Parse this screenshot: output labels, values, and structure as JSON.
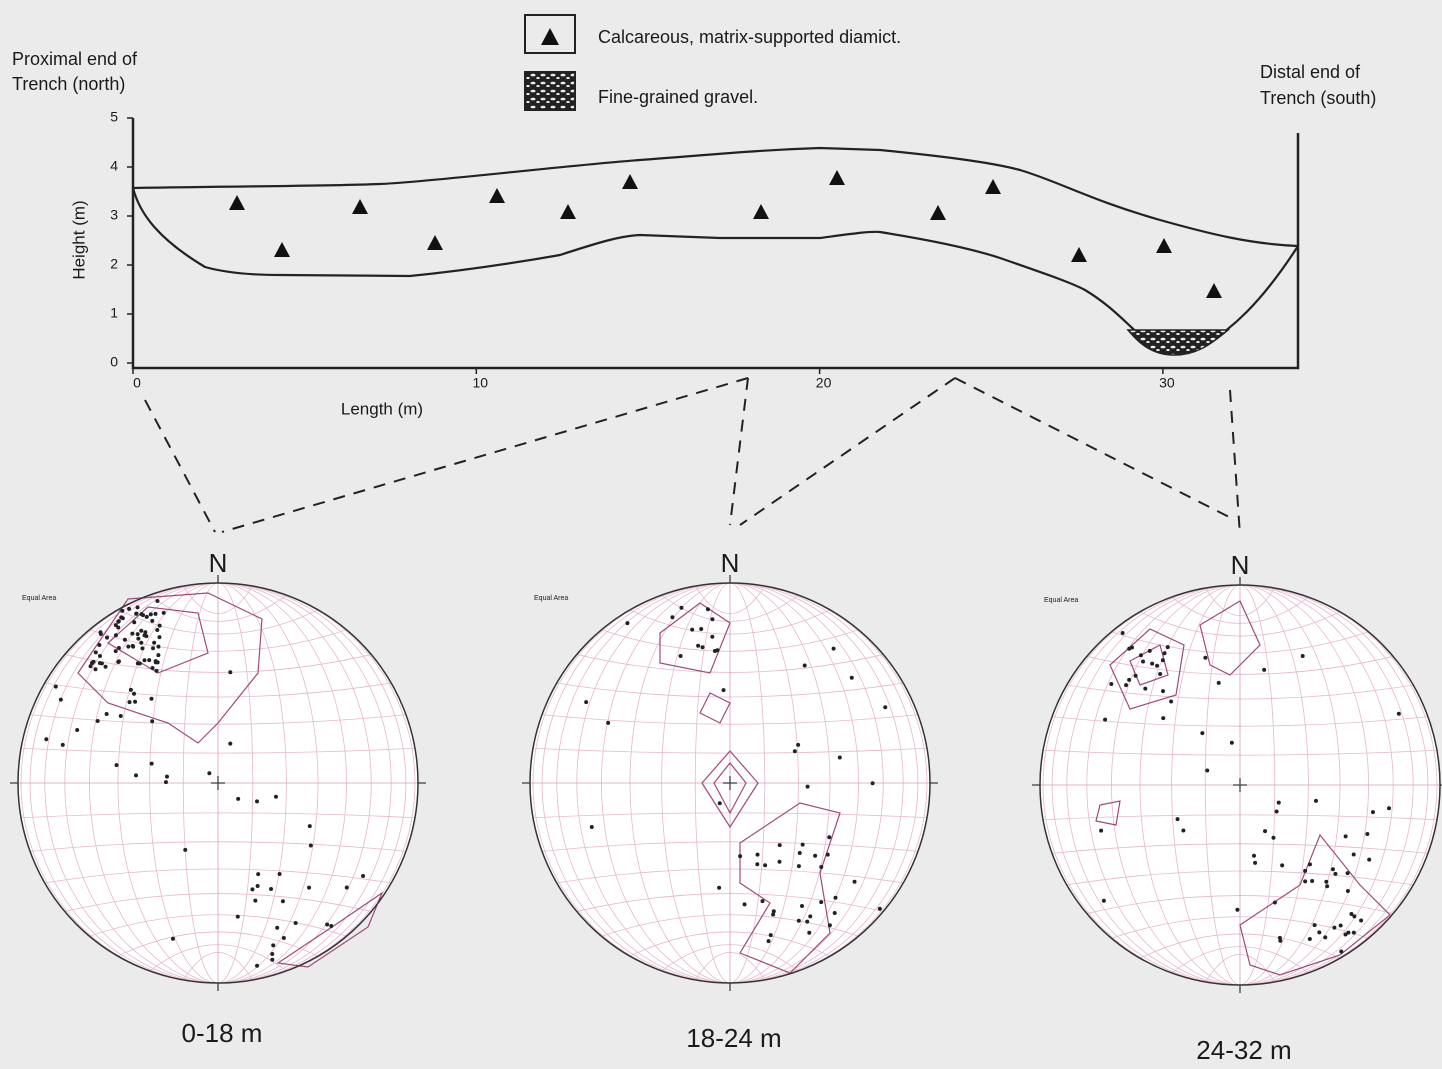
{
  "legend": [
    {
      "label": "Calcareous, matrix-supported diamict."
    },
    {
      "label": "Fine-grained gravel."
    }
  ],
  "section": {
    "left_label": [
      "Proximal end of",
      "Trench (north)"
    ],
    "right_label": [
      "Distal end of",
      "Trench (south)"
    ],
    "y_axis": {
      "title": "Height (m)",
      "ticks": [
        0,
        1,
        2,
        3,
        4,
        5
      ]
    },
    "x_axis": {
      "title": "Length (m)",
      "ticks": [
        0,
        10,
        20,
        30
      ]
    }
  },
  "stereonets": [
    {
      "north": "N",
      "caption": "Equal Area",
      "range": "0-18 m"
    },
    {
      "north": "N",
      "caption": "Equal Area",
      "range": "18-24 m"
    },
    {
      "north": "N",
      "caption": "Equal Area",
      "range": "24-32 m"
    }
  ]
}
